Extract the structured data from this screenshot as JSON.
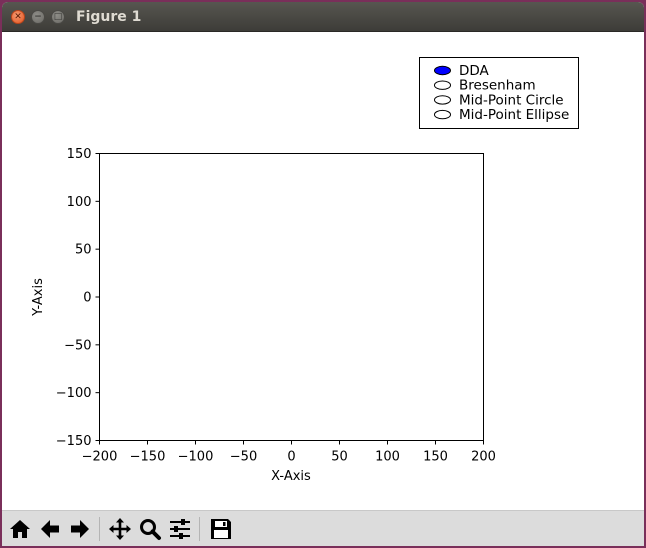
{
  "window": {
    "title": "Figure 1",
    "controls": [
      "close-icon",
      "minimize-icon",
      "maximize-icon"
    ]
  },
  "radio": {
    "options": [
      "DDA",
      "Bresenham",
      "Mid-Point Circle",
      "Mid-Point Ellipse"
    ],
    "selected_index": 0,
    "selected_color": "#0000ff"
  },
  "chart_data": {
    "type": "line",
    "series": [],
    "xlabel": "X-Axis",
    "ylabel": "Y-Axis",
    "xlim": [
      -200,
      200
    ],
    "ylim": [
      -150,
      150
    ],
    "xticks": [
      -200,
      -150,
      -100,
      -50,
      0,
      50,
      100,
      150,
      200
    ],
    "yticks": [
      -150,
      -100,
      -50,
      0,
      50,
      100,
      150
    ],
    "xtick_labels": [
      "−200",
      "−150",
      "−100",
      "−50",
      "0",
      "50",
      "100",
      "150",
      "200"
    ],
    "ytick_labels": [
      "−150",
      "−100",
      "−50",
      "0",
      "50",
      "100",
      "150"
    ],
    "grid": false
  },
  "toolbar": {
    "buttons": [
      {
        "icon": "home-icon",
        "name": "home-button"
      },
      {
        "icon": "back-arrow-icon",
        "name": "back-button"
      },
      {
        "icon": "forward-arrow-icon",
        "name": "forward-button"
      },
      {
        "icon": "pan-icon",
        "name": "pan-button"
      },
      {
        "icon": "zoom-icon",
        "name": "zoom-button"
      },
      {
        "icon": "configure-subplots-icon",
        "name": "subplots-button"
      },
      {
        "icon": "save-icon",
        "name": "save-button"
      }
    ]
  },
  "colors": {
    "titlebar": "#3d3c38",
    "toolbar_bg": "#dcdcdc",
    "plot_bg": "#ffffff"
  }
}
